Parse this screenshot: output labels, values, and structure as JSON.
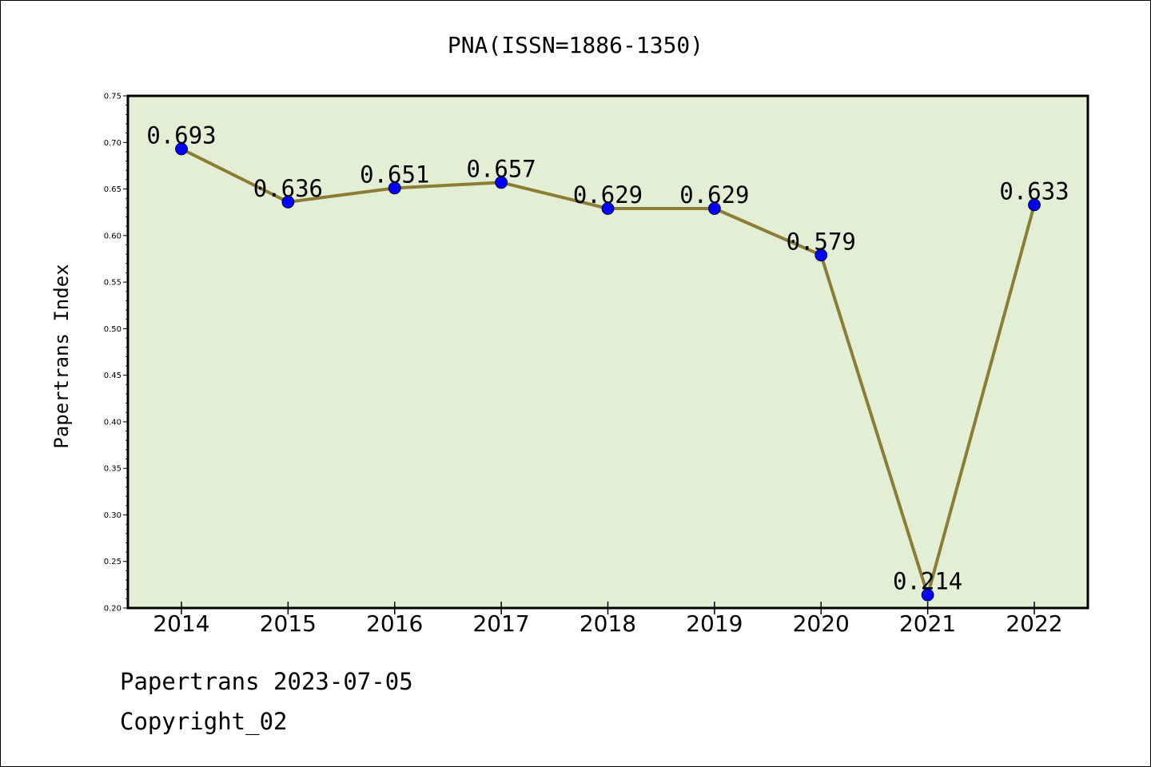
{
  "chart_data": {
    "type": "line",
    "title": "PNA(ISSN=1886-1350)",
    "xlabel": "",
    "ylabel": "Papertrans Index",
    "categories": [
      "2014",
      "2015",
      "2016",
      "2017",
      "2018",
      "2019",
      "2020",
      "2021",
      "2022"
    ],
    "series": [
      {
        "values": [
          0.693,
          0.636,
          0.651,
          0.657,
          0.629,
          0.629,
          0.579,
          0.214,
          0.633
        ],
        "labels": [
          "0.693",
          "0.636",
          "0.651",
          "0.657",
          "0.629",
          "0.629",
          "0.579",
          "0.214",
          "0.633"
        ]
      }
    ],
    "ylim": [
      0.2,
      0.75
    ],
    "yticks": [
      "0.20",
      "0.25",
      "0.30",
      "0.35",
      "0.40",
      "0.45",
      "0.50",
      "0.55",
      "0.60",
      "0.65",
      "0.70",
      "0.75"
    ],
    "grid": false,
    "legend": "none",
    "colors": {
      "plot_background": "#e2efd5",
      "line": "#8b7d35",
      "marker": "#0000ff"
    }
  },
  "footer": {
    "line1": "Papertrans 2023-07-05",
    "line2": "Copyright_02"
  }
}
